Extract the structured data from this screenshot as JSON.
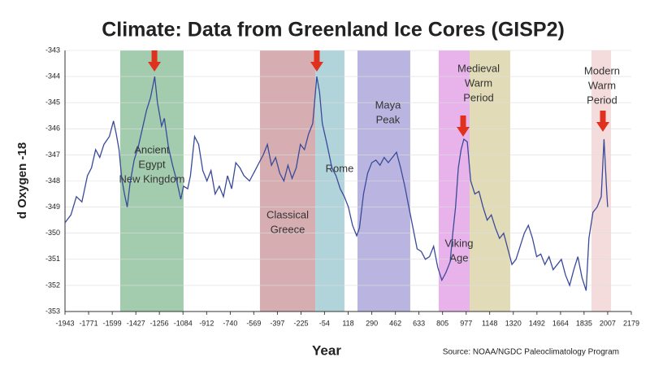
{
  "chart_data": {
    "type": "line",
    "title": "Climate: Data from Greenland Ice Cores (GISP2)",
    "xlabel": "Year",
    "ylabel": "d Oxygen -18",
    "source": "Source: NOAA/NGDC Paleoclimatology Program",
    "xlim": [
      -1943,
      2179
    ],
    "xticks": [
      -1943,
      -1771,
      -1599,
      -1427,
      -1256,
      -1084,
      -912,
      -740,
      -569,
      -397,
      -225,
      -54,
      118,
      290,
      462,
      633,
      805,
      977,
      1148,
      1320,
      1492,
      1664,
      1835,
      2007,
      2179
    ],
    "ylim": [
      -353,
      -343
    ],
    "yticks": [
      -353,
      -352,
      -351,
      -350,
      -349,
      -348,
      -347,
      -346,
      -345,
      -344,
      -343
    ],
    "grid": true,
    "bands": [
      {
        "start": -1541,
        "end": -1080,
        "color": "#93c3a0",
        "label": [
          "Ancient",
          "Egypt",
          "New Kingdom"
        ]
      },
      {
        "start": -524,
        "end": -121,
        "color": "#cfa0a4",
        "label": [
          "Classical",
          "Greece"
        ]
      },
      {
        "start": -121,
        "end": 91,
        "color": "#a3ccd3",
        "label": [
          "Rome"
        ]
      },
      {
        "start": 186,
        "end": 570,
        "color": "#aea8da",
        "label": [
          "Maya",
          "Peak"
        ]
      },
      {
        "start": 777,
        "end": 1002,
        "color": "#e3a6e6",
        "label": [
          "Viking",
          "Age"
        ]
      },
      {
        "start": 1002,
        "end": 1298,
        "color": "#ddd5ac",
        "label": [
          "Medieval",
          "Warm",
          "Period"
        ]
      },
      {
        "start": 1889,
        "end": 2031,
        "color": "#f3d6d6",
        "label": [
          "Modern",
          "Warm",
          "Period"
        ]
      }
    ],
    "arrows": [
      -1292,
      -110,
      955,
      1972
    ],
    "arrow_color": "#e0301e",
    "series": [
      {
        "name": "GISP2",
        "color": "#3a4a9a",
        "x": [
          -1943,
          -1900,
          -1860,
          -1820,
          -1780,
          -1750,
          -1720,
          -1690,
          -1660,
          -1620,
          -1590,
          -1570,
          -1550,
          -1530,
          -1510,
          -1490,
          -1470,
          -1440,
          -1410,
          -1380,
          -1350,
          -1320,
          -1290,
          -1270,
          -1240,
          -1220,
          -1190,
          -1160,
          -1130,
          -1100,
          -1080,
          -1050,
          -1030,
          -1000,
          -970,
          -940,
          -910,
          -880,
          -850,
          -820,
          -790,
          -760,
          -730,
          -700,
          -670,
          -640,
          -600,
          -560,
          -530,
          -500,
          -470,
          -440,
          -410,
          -380,
          -350,
          -320,
          -290,
          -260,
          -230,
          -200,
          -170,
          -140,
          -110,
          -90,
          -70,
          -40,
          -20,
          0,
          30,
          60,
          90,
          120,
          150,
          180,
          200,
          230,
          260,
          290,
          320,
          350,
          380,
          410,
          440,
          470,
          500,
          530,
          560,
          590,
          620,
          650,
          680,
          710,
          740,
          770,
          800,
          830,
          860,
          880,
          900,
          920,
          940,
          960,
          985,
          1010,
          1040,
          1070,
          1100,
          1130,
          1160,
          1190,
          1220,
          1250,
          1280,
          1310,
          1340,
          1370,
          1400,
          1430,
          1460,
          1490,
          1520,
          1550,
          1580,
          1610,
          1640,
          1670,
          1700,
          1730,
          1760,
          1790,
          1820,
          1850,
          1870,
          1900,
          1930,
          1960,
          1980,
          2000,
          2007
        ],
        "values": [
          -349.6,
          -349.3,
          -348.6,
          -348.8,
          -347.8,
          -347.5,
          -346.8,
          -347.1,
          -346.6,
          -346.3,
          -345.7,
          -346.2,
          -346.8,
          -347.9,
          -348.5,
          -349.0,
          -348.1,
          -347.2,
          -346.7,
          -346.0,
          -345.3,
          -344.8,
          -344.0,
          -345.0,
          -345.9,
          -345.6,
          -346.7,
          -347.4,
          -348.0,
          -348.7,
          -348.2,
          -348.3,
          -347.8,
          -346.3,
          -346.6,
          -347.6,
          -348.0,
          -347.6,
          -348.5,
          -348.2,
          -348.6,
          -347.8,
          -348.3,
          -347.3,
          -347.5,
          -347.8,
          -348.0,
          -347.6,
          -347.3,
          -347.0,
          -346.6,
          -347.4,
          -347.1,
          -347.7,
          -348.0,
          -347.4,
          -347.9,
          -347.5,
          -346.6,
          -346.8,
          -346.2,
          -345.8,
          -344.0,
          -344.6,
          -345.8,
          -346.5,
          -347.0,
          -347.5,
          -347.8,
          -348.3,
          -348.6,
          -349.0,
          -349.7,
          -350.1,
          -349.8,
          -348.5,
          -347.7,
          -347.3,
          -347.2,
          -347.4,
          -347.1,
          -347.3,
          -347.1,
          -346.9,
          -347.5,
          -348.2,
          -349.0,
          -349.8,
          -350.6,
          -350.7,
          -351.0,
          -350.9,
          -350.5,
          -351.3,
          -351.8,
          -351.5,
          -351.1,
          -350.0,
          -349.0,
          -347.5,
          -346.8,
          -346.4,
          -346.5,
          -348.0,
          -348.5,
          -348.4,
          -349.0,
          -349.5,
          -349.3,
          -349.8,
          -350.2,
          -350.0,
          -350.6,
          -351.2,
          -351.0,
          -350.5,
          -350.0,
          -349.7,
          -350.2,
          -350.9,
          -350.8,
          -351.2,
          -350.9,
          -351.4,
          -351.2,
          -351.0,
          -351.6,
          -352.0,
          -351.4,
          -350.9,
          -351.7,
          -352.2,
          -350.2,
          -349.2,
          -349.0,
          -348.6,
          -346.4,
          -348.4,
          -349.0
        ]
      }
    ]
  }
}
